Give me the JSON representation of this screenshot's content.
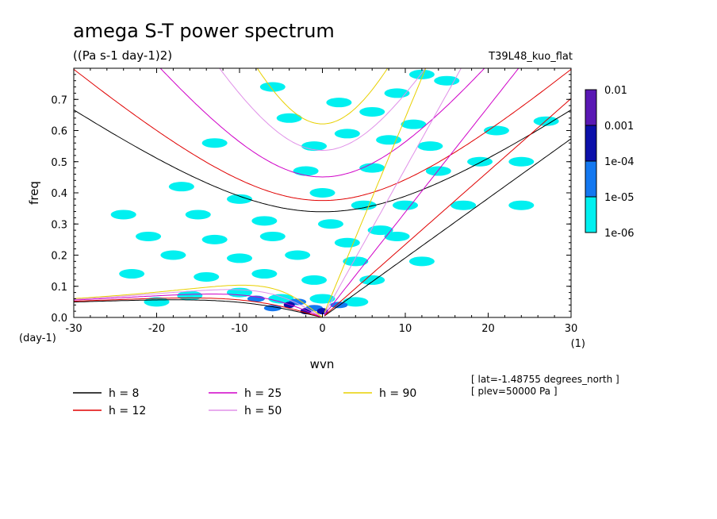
{
  "header": {
    "title": "amega S-T power spectrum",
    "subtitle": "((Pa s-1 day-1)2)",
    "run_name": "T39L48_kuo_flat"
  },
  "colorbar": {
    "labels": [
      "0.01",
      "0.001",
      "1e-04",
      "1e-05",
      "1e-06"
    ],
    "colors": [
      "#5a18b4",
      "#0c10aa",
      "#1478f0",
      "#00f0f0"
    ]
  },
  "info": {
    "lat": "[ lat=-1.48755 degrees_north ]",
    "plev": "[ plev=50000 Pa ]"
  },
  "chart_data": {
    "type": "heatmap",
    "title": "amega S-T power spectrum",
    "subtitle": "((Pa s-1 day-1)2)",
    "xlabel": "wvn",
    "ylabel": "freq",
    "x_unit_label": "(1)",
    "y_unit_label": "(day-1)",
    "xlim": [
      -30,
      30
    ],
    "ylim": [
      0,
      0.8
    ],
    "x_ticks": [
      -30,
      -20,
      -10,
      0,
      10,
      20,
      30
    ],
    "x_tick_labels": [
      "-30",
      "-20",
      "-10",
      "0",
      "10",
      "20",
      "30"
    ],
    "y_ticks": [
      0,
      0.1,
      0.2,
      0.3,
      0.4,
      0.5,
      0.6,
      0.7
    ],
    "y_tick_labels": [
      "0.0",
      "0.1",
      "0.2",
      "0.3",
      "0.4",
      "0.5",
      "0.6",
      "0.7"
    ],
    "color_levels": [
      1e-06,
      1e-05,
      0.0001,
      0.001,
      0.01
    ],
    "power_patches": [
      {
        "k": 12,
        "f": 0.78,
        "level": 1
      },
      {
        "k": 15,
        "f": 0.76,
        "level": 1
      },
      {
        "k": 9,
        "f": 0.72,
        "level": 1
      },
      {
        "k": 2,
        "f": 0.69,
        "level": 1
      },
      {
        "k": -6,
        "f": 0.74,
        "level": 1
      },
      {
        "k": 6,
        "f": 0.66,
        "level": 1
      },
      {
        "k": 11,
        "f": 0.62,
        "level": 1
      },
      {
        "k": -4,
        "f": 0.64,
        "level": 1
      },
      {
        "k": 3,
        "f": 0.59,
        "level": 1
      },
      {
        "k": 8,
        "f": 0.57,
        "level": 1
      },
      {
        "k": 13,
        "f": 0.55,
        "level": 1
      },
      {
        "k": -1,
        "f": 0.55,
        "level": 1
      },
      {
        "k": 14,
        "f": 0.47,
        "level": 1
      },
      {
        "k": 6,
        "f": 0.48,
        "level": 1
      },
      {
        "k": -2,
        "f": 0.47,
        "level": 1
      },
      {
        "k": 19,
        "f": 0.5,
        "level": 1
      },
      {
        "k": 24,
        "f": 0.5,
        "level": 1
      },
      {
        "k": 0,
        "f": 0.4,
        "level": 1
      },
      {
        "k": -17,
        "f": 0.42,
        "level": 1
      },
      {
        "k": -10,
        "f": 0.38,
        "level": 1
      },
      {
        "k": 10,
        "f": 0.36,
        "level": 1
      },
      {
        "k": 17,
        "f": 0.36,
        "level": 1
      },
      {
        "k": -24,
        "f": 0.33,
        "level": 1
      },
      {
        "k": -15,
        "f": 0.33,
        "level": 1
      },
      {
        "k": -7,
        "f": 0.31,
        "level": 1
      },
      {
        "k": 1,
        "f": 0.3,
        "level": 1
      },
      {
        "k": -21,
        "f": 0.26,
        "level": 1
      },
      {
        "k": -13,
        "f": 0.25,
        "level": 1
      },
      {
        "k": -6,
        "f": 0.26,
        "level": 1
      },
      {
        "k": 3,
        "f": 0.24,
        "level": 1
      },
      {
        "k": 9,
        "f": 0.26,
        "level": 1
      },
      {
        "k": -18,
        "f": 0.2,
        "level": 1
      },
      {
        "k": -10,
        "f": 0.19,
        "level": 1
      },
      {
        "k": -3,
        "f": 0.2,
        "level": 1
      },
      {
        "k": 4,
        "f": 0.18,
        "level": 1
      },
      {
        "k": 12,
        "f": 0.18,
        "level": 1
      },
      {
        "k": -23,
        "f": 0.14,
        "level": 1
      },
      {
        "k": -14,
        "f": 0.13,
        "level": 1
      },
      {
        "k": -7,
        "f": 0.14,
        "level": 1
      },
      {
        "k": -1,
        "f": 0.12,
        "level": 1
      },
      {
        "k": 6,
        "f": 0.12,
        "level": 1
      },
      {
        "k": -16,
        "f": 0.07,
        "level": 1
      },
      {
        "k": -10,
        "f": 0.08,
        "level": 1
      },
      {
        "k": -5,
        "f": 0.06,
        "level": 1
      },
      {
        "k": 0,
        "f": 0.06,
        "level": 1
      },
      {
        "k": 4,
        "f": 0.05,
        "level": 1
      },
      {
        "k": -20,
        "f": 0.05,
        "level": 1
      },
      {
        "k": 24,
        "f": 0.36,
        "level": 1
      },
      {
        "k": 21,
        "f": 0.6,
        "level": 1
      },
      {
        "k": 27,
        "f": 0.63,
        "level": 1
      },
      {
        "k": -13,
        "f": 0.56,
        "level": 1
      },
      {
        "k": 5,
        "f": 0.36,
        "level": 1
      },
      {
        "k": 7,
        "f": 0.28,
        "level": 1
      },
      {
        "k": -8,
        "f": 0.06,
        "level": 2
      },
      {
        "k": -3,
        "f": 0.05,
        "level": 2
      },
      {
        "k": -1,
        "f": 0.03,
        "level": 2
      },
      {
        "k": 2,
        "f": 0.04,
        "level": 2
      },
      {
        "k": -6,
        "f": 0.03,
        "level": 2
      },
      {
        "k": -2,
        "f": 0.02,
        "level": 3
      },
      {
        "k": -4,
        "f": 0.04,
        "level": 3
      },
      {
        "k": 0,
        "f": 0.02,
        "level": 3
      }
    ],
    "dispersion_curves": [
      {
        "label": "h = 8",
        "h": 8,
        "color": "#000000"
      },
      {
        "label": "h = 12",
        "h": 12,
        "color": "#e00000"
      },
      {
        "label": "h = 25",
        "h": 25,
        "color": "#d000c8"
      },
      {
        "label": "h = 50",
        "h": 50,
        "color": "#e090e8"
      },
      {
        "label": "h = 90",
        "h": 90,
        "color": "#e8d000"
      }
    ]
  }
}
